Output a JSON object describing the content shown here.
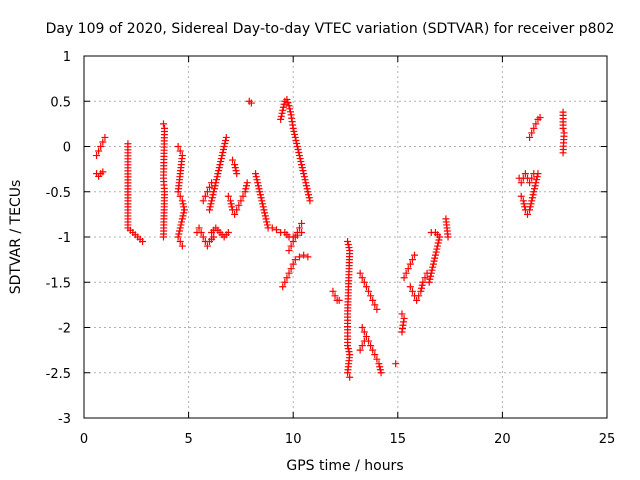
{
  "chart_data": {
    "type": "scatter",
    "title": "Day 109 of 2020, Sidereal Day-to-day VTEC variation (SDTVAR) for receiver p802",
    "xlabel": "GPS time / hours",
    "ylabel": "SDTVAR / TECUs",
    "xlim": [
      0,
      25
    ],
    "ylim": [
      -3,
      1
    ],
    "xticks": [
      0,
      5,
      10,
      15,
      20,
      25
    ],
    "xtick_labels": [
      "0",
      "5",
      "10",
      "15",
      "20",
      "25"
    ],
    "yticks": [
      1,
      0.5,
      0,
      -0.5,
      -1,
      -1.5,
      -2,
      -2.5,
      -3
    ],
    "ytick_labels": [
      "1",
      "0.5",
      "0",
      "-0.5",
      "-1",
      "-1.5",
      "-2",
      "-2.5",
      "-3"
    ],
    "grid": true,
    "marker": "+",
    "series_color": "#ff0000",
    "segments": [
      [
        [
          0.6,
          -0.1
        ],
        [
          0.7,
          -0.05
        ],
        [
          0.8,
          0.0
        ],
        [
          0.9,
          0.05
        ],
        [
          1.0,
          0.1
        ]
      ],
      [
        [
          0.6,
          -0.3
        ],
        [
          0.7,
          -0.33
        ],
        [
          0.8,
          -0.3
        ],
        [
          0.9,
          -0.28
        ]
      ],
      [
        [
          2.1,
          0.03
        ],
        [
          2.1,
          -0.9
        ],
        [
          2.8,
          -1.05
        ]
      ],
      [
        [
          3.8,
          0.25
        ],
        [
          3.85,
          0.2
        ],
        [
          3.8,
          -0.35
        ],
        [
          3.85,
          -0.5
        ],
        [
          3.8,
          -1.0
        ]
      ],
      [
        [
          4.5,
          0.0
        ],
        [
          4.6,
          -0.05
        ],
        [
          4.7,
          -0.1
        ],
        [
          4.5,
          -0.5
        ],
        [
          4.6,
          -0.55
        ],
        [
          4.7,
          -0.6
        ],
        [
          4.8,
          -0.7
        ],
        [
          4.5,
          -1.0
        ],
        [
          4.6,
          -1.05
        ],
        [
          4.7,
          -1.1
        ]
      ],
      [
        [
          5.4,
          -0.95
        ],
        [
          5.5,
          -0.9
        ],
        [
          5.6,
          -0.95
        ],
        [
          5.7,
          -1.0
        ],
        [
          5.8,
          -1.05
        ],
        [
          5.9,
          -1.1
        ],
        [
          6.0,
          -1.05
        ],
        [
          6.2,
          -1.0
        ]
      ],
      [
        [
          5.7,
          -0.6
        ],
        [
          5.8,
          -0.55
        ],
        [
          5.9,
          -0.5
        ],
        [
          6.0,
          -0.45
        ],
        [
          6.1,
          -0.4
        ]
      ],
      [
        [
          6.0,
          -0.7
        ],
        [
          6.1,
          -0.6
        ],
        [
          6.2,
          -0.5
        ],
        [
          6.3,
          -0.4
        ],
        [
          6.4,
          -0.3
        ],
        [
          6.5,
          -0.2
        ],
        [
          6.6,
          -0.1
        ],
        [
          6.7,
          0.0
        ],
        [
          6.8,
          0.1
        ]
      ],
      [
        [
          6.1,
          -0.95
        ],
        [
          6.3,
          -0.9
        ],
        [
          6.5,
          -0.95
        ],
        [
          6.7,
          -1.0
        ],
        [
          6.9,
          -0.95
        ]
      ],
      [
        [
          7.1,
          -0.15
        ],
        [
          7.2,
          -0.2
        ],
        [
          7.3,
          -0.3
        ]
      ],
      [
        [
          6.9,
          -0.55
        ],
        [
          7.0,
          -0.6
        ],
        [
          7.1,
          -0.7
        ],
        [
          7.2,
          -0.75
        ],
        [
          7.3,
          -0.7
        ],
        [
          7.4,
          -0.65
        ],
        [
          7.5,
          -0.6
        ],
        [
          7.6,
          -0.55
        ],
        [
          7.7,
          -0.5
        ],
        [
          7.8,
          -0.4
        ]
      ],
      [
        [
          7.9,
          0.5
        ],
        [
          8.0,
          0.48
        ]
      ],
      [
        [
          8.2,
          -0.3
        ],
        [
          8.3,
          -0.4
        ],
        [
          8.4,
          -0.5
        ],
        [
          8.5,
          -0.6
        ],
        [
          8.6,
          -0.7
        ],
        [
          8.7,
          -0.8
        ],
        [
          8.8,
          -0.9
        ],
        [
          9.0,
          -0.9
        ],
        [
          9.2,
          -0.92
        ],
        [
          9.4,
          -0.95
        ],
        [
          9.6,
          -0.95
        ],
        [
          9.8,
          -1.0
        ],
        [
          10.0,
          -1.0
        ],
        [
          10.2,
          -0.98
        ],
        [
          10.4,
          -0.95
        ]
      ],
      [
        [
          9.4,
          0.3
        ],
        [
          9.5,
          0.4
        ],
        [
          9.6,
          0.5
        ],
        [
          9.7,
          0.52
        ],
        [
          9.8,
          0.45
        ],
        [
          9.9,
          0.35
        ],
        [
          10.0,
          0.2
        ],
        [
          10.1,
          0.1
        ],
        [
          10.2,
          0.0
        ],
        [
          10.3,
          -0.1
        ],
        [
          10.4,
          -0.2
        ],
        [
          10.5,
          -0.3
        ],
        [
          10.6,
          -0.4
        ],
        [
          10.7,
          -0.5
        ],
        [
          10.8,
          -0.6
        ]
      ],
      [
        [
          9.5,
          -1.55
        ],
        [
          9.6,
          -1.5
        ],
        [
          9.7,
          -1.45
        ],
        [
          9.8,
          -1.4
        ],
        [
          9.9,
          -1.35
        ],
        [
          10.0,
          -1.3
        ],
        [
          10.1,
          -1.25
        ],
        [
          10.3,
          -1.22
        ],
        [
          10.5,
          -1.2
        ],
        [
          10.7,
          -1.22
        ]
      ],
      [
        [
          9.8,
          -1.15
        ],
        [
          9.9,
          -1.1
        ],
        [
          10.0,
          -1.05
        ],
        [
          10.1,
          -1.0
        ],
        [
          10.2,
          -0.95
        ],
        [
          10.3,
          -0.9
        ],
        [
          10.4,
          -0.85
        ]
      ],
      [
        [
          11.9,
          -1.6
        ],
        [
          12.0,
          -1.65
        ],
        [
          12.1,
          -1.7
        ],
        [
          12.2,
          -1.7
        ]
      ],
      [
        [
          12.6,
          -1.05
        ],
        [
          12.7,
          -1.15
        ],
        [
          12.6,
          -1.85
        ],
        [
          12.6,
          -2.2
        ],
        [
          12.7,
          -2.3
        ],
        [
          12.6,
          -2.5
        ],
        [
          12.7,
          -2.55
        ]
      ],
      [
        [
          13.2,
          -1.4
        ],
        [
          13.3,
          -1.45
        ],
        [
          13.4,
          -1.5
        ],
        [
          13.5,
          -1.55
        ],
        [
          13.6,
          -1.6
        ],
        [
          13.7,
          -1.65
        ],
        [
          13.8,
          -1.7
        ],
        [
          13.9,
          -1.75
        ],
        [
          14.0,
          -1.8
        ]
      ],
      [
        [
          13.3,
          -2.0
        ],
        [
          13.4,
          -2.05
        ],
        [
          13.5,
          -2.1
        ],
        [
          13.6,
          -2.15
        ],
        [
          13.7,
          -2.2
        ],
        [
          13.8,
          -2.25
        ],
        [
          13.9,
          -2.3
        ],
        [
          14.0,
          -2.35
        ],
        [
          14.1,
          -2.4
        ],
        [
          14.2,
          -2.5
        ]
      ],
      [
        [
          13.2,
          -2.25
        ],
        [
          13.3,
          -2.2
        ],
        [
          13.4,
          -2.15
        ]
      ],
      [
        [
          14.9,
          -2.4
        ]
      ],
      [
        [
          15.2,
          -1.85
        ],
        [
          15.3,
          -1.9
        ],
        [
          15.2,
          -2.05
        ]
      ],
      [
        [
          15.3,
          -1.45
        ],
        [
          15.4,
          -1.4
        ],
        [
          15.5,
          -1.35
        ],
        [
          15.6,
          -1.3
        ],
        [
          15.7,
          -1.25
        ],
        [
          15.8,
          -1.2
        ]
      ],
      [
        [
          15.6,
          -1.55
        ],
        [
          15.7,
          -1.6
        ],
        [
          15.8,
          -1.65
        ],
        [
          15.9,
          -1.7
        ],
        [
          16.0,
          -1.65
        ],
        [
          16.1,
          -1.6
        ],
        [
          16.2,
          -1.5
        ],
        [
          16.3,
          -1.45
        ],
        [
          16.4,
          -1.4
        ]
      ],
      [
        [
          16.5,
          -1.5
        ],
        [
          16.6,
          -1.4
        ],
        [
          16.7,
          -1.3
        ],
        [
          16.8,
          -1.2
        ],
        [
          16.9,
          -1.1
        ],
        [
          17.0,
          -1.0
        ],
        [
          16.8,
          -0.95
        ],
        [
          16.6,
          -0.95
        ]
      ],
      [
        [
          17.3,
          -0.8
        ],
        [
          17.35,
          -0.9
        ],
        [
          17.4,
          -1.0
        ]
      ],
      [
        [
          20.8,
          -0.35
        ],
        [
          20.9,
          -0.4
        ],
        [
          21.0,
          -0.35
        ],
        [
          21.1,
          -0.3
        ],
        [
          21.2,
          -0.35
        ],
        [
          21.3,
          -0.4
        ],
        [
          21.4,
          -0.35
        ],
        [
          21.5,
          -0.3
        ]
      ],
      [
        [
          20.9,
          -0.55
        ],
        [
          21.0,
          -0.6
        ],
        [
          21.1,
          -0.7
        ],
        [
          21.2,
          -0.75
        ],
        [
          21.3,
          -0.7
        ],
        [
          21.4,
          -0.6
        ],
        [
          21.5,
          -0.5
        ],
        [
          21.6,
          -0.4
        ],
        [
          21.7,
          -0.3
        ]
      ],
      [
        [
          21.3,
          0.1
        ],
        [
          21.4,
          0.15
        ],
        [
          21.5,
          0.2
        ],
        [
          21.6,
          0.25
        ],
        [
          21.7,
          0.3
        ],
        [
          21.8,
          0.32
        ]
      ],
      [
        [
          22.9,
          0.38
        ],
        [
          22.9,
          0.2
        ],
        [
          22.95,
          0.15
        ],
        [
          22.9,
          -0.07
        ]
      ]
    ]
  }
}
